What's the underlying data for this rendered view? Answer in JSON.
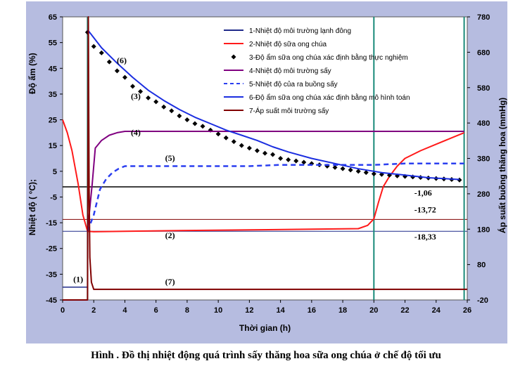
{
  "caption": "Hình . Đồ thị nhiệt động quá trình sấy thăng hoa sữa ong chúa ở chế độ tối ưu",
  "chart_data": {
    "type": "line",
    "xlabel": "Thời gian (h)",
    "ylabel_left_top": "Độ ẩm (%)",
    "ylabel_left_bottom": "Nhiệt độ ( °C);",
    "ylabel_right": "Áp suất buồng thăng hoa (mmHg)",
    "xlim": [
      0,
      26
    ],
    "ylim_left": [
      -45,
      65
    ],
    "ylim_right": [
      -20,
      780
    ],
    "x_ticks": [
      0,
      2,
      4,
      6,
      8,
      10,
      12,
      14,
      16,
      18,
      20,
      22,
      24,
      26
    ],
    "y_left_ticks": [
      65,
      55,
      45,
      35,
      25,
      15,
      5,
      -5,
      -15,
      -25,
      -35,
      -45
    ],
    "y_right_ticks": [
      780,
      680,
      580,
      480,
      380,
      280,
      180,
      80,
      -20
    ],
    "colors": {
      "background": "#ffffff",
      "plot_bg": "#ffffff",
      "panel": "#b6bce0",
      "series1": "#1f2a8a",
      "series2": "#ff1a1a",
      "series3": "#000000",
      "series4": "#800080",
      "series5": "#2b3ff0",
      "series6": "#1b2ee0",
      "series7": "#800000",
      "vline": "#1a8a7a"
    },
    "legend": [
      {
        "label": "1-Nhiệt độ môi trường lạnh đông",
        "style": "line",
        "color": "#1f2a8a"
      },
      {
        "label": "2-Nhiệt độ sữa ong chúa",
        "style": "line",
        "color": "#ff1a1a"
      },
      {
        "label": "3-Độ ẩm sữa ong chúa xác định bằng thực nghiệm",
        "style": "marker",
        "color": "#000000"
      },
      {
        "label": "4-Nhiệt độ môi trường sấy",
        "style": "line",
        "color": "#800080"
      },
      {
        "label": "5-Nhiệt độ của ra buồng sấy",
        "style": "dash",
        "color": "#2b3ff0"
      },
      {
        "label": "6-Độ ẩm sữa ong chúa xác định bằng mô hình toán",
        "style": "line",
        "color": "#1b2ee0"
      },
      {
        "label": "7-Áp suất môi trường sấy",
        "style": "line",
        "color": "#800000"
      }
    ],
    "vlines_x": [
      1.6,
      20,
      25.8
    ],
    "hlines_y": [
      -1.06,
      -13.72,
      -18.33
    ],
    "hline_labels": [
      "-1,06",
      "-13,72",
      "-18,33"
    ],
    "curve_labels": [
      {
        "text": "(1)",
        "x": 1.0,
        "y": -38
      },
      {
        "text": "(2)",
        "x": 6.9,
        "y": -21
      },
      {
        "text": "(3)",
        "x": 4.7,
        "y": 33
      },
      {
        "text": "(4)",
        "x": 4.7,
        "y": 19
      },
      {
        "text": "(5)",
        "x": 6.9,
        "y": 9
      },
      {
        "text": "(6)",
        "x": 3.8,
        "y": 47
      },
      {
        "text": "(7)",
        "x": 6.9,
        "y": -39
      }
    ],
    "series": [
      {
        "name": "1-Nhiệt độ môi trường lạnh đông",
        "axis": "left",
        "x": [
          0,
          1.6,
          1.6
        ],
        "y": [
          -40,
          -40,
          -18.33
        ]
      },
      {
        "name": "2-Nhiệt độ sữa ong chúa",
        "axis": "left",
        "x": [
          0,
          0.3,
          0.6,
          1.0,
          1.3,
          1.6,
          2.0,
          4,
          8,
          12,
          16,
          19,
          19.6,
          20,
          20.3,
          20.6,
          21,
          21.5,
          22,
          23,
          24,
          25,
          25.8
        ],
        "y": [
          25,
          20,
          13,
          0,
          -12,
          -18.3,
          -18.5,
          -18.3,
          -18.0,
          -17.8,
          -17.5,
          -17.3,
          -16,
          -13.5,
          -7,
          -1,
          3,
          7,
          10,
          13,
          15.5,
          18,
          20
        ]
      },
      {
        "name": "3-Độ ẩm sữa ong chúa xác định bằng thực nghiệm",
        "axis": "left",
        "x": [
          1.6,
          2,
          2.5,
          3,
          3.5,
          4,
          4.5,
          5,
          5.5,
          6,
          6.5,
          7,
          7.5,
          8,
          8.5,
          9,
          9.5,
          10,
          10.5,
          11,
          11.5,
          12,
          12.5,
          13,
          13.5,
          14,
          14.5,
          15,
          15.5,
          16,
          16.5,
          17,
          17.5,
          18,
          18.5,
          19,
          19.5,
          20,
          20.5,
          21,
          21.5,
          22,
          22.5,
          23,
          23.5,
          24,
          24.5,
          25,
          25.5
        ],
        "y": [
          59,
          53.5,
          51,
          47.5,
          44,
          41.5,
          38,
          36,
          33.5,
          32,
          30,
          28.5,
          26.5,
          25,
          23.5,
          22.5,
          21,
          19.5,
          18,
          16.5,
          15,
          14,
          13,
          12,
          11.5,
          10,
          9.5,
          9,
          8.5,
          8,
          7.5,
          7,
          6.5,
          6,
          5.5,
          5,
          4.5,
          4,
          3.8,
          3.5,
          3.2,
          3,
          2.8,
          2.6,
          2.4,
          2.2,
          2,
          1.8,
          1.6
        ]
      },
      {
        "name": "4-Nhiệt độ môi trường sấy",
        "axis": "left",
        "x": [
          1.6,
          1.9,
          2.1,
          2.5,
          3,
          3.5,
          4,
          8,
          12,
          16,
          20,
          25.8
        ],
        "y": [
          -18.3,
          0,
          14,
          17,
          19,
          20,
          20.5,
          20.5,
          20.5,
          20.5,
          20.5,
          20.5
        ]
      },
      {
        "name": "5-Nhiệt độ của ra buồng sấy",
        "axis": "left",
        "x": [
          1.6,
          2.0,
          2.4,
          2.8,
          3.2,
          3.6,
          4,
          8,
          12,
          14,
          16,
          20,
          22,
          25.8
        ],
        "y": [
          -18.3,
          -12,
          -2,
          2,
          4.5,
          6,
          7,
          7,
          7,
          7.5,
          7.5,
          7.5,
          8,
          8
        ]
      },
      {
        "name": "6-Độ ẩm sữa ong chúa xác định bằng mô hình toán",
        "axis": "left",
        "x": [
          1.6,
          2.5,
          3.5,
          4.5,
          5.5,
          6.5,
          7.5,
          8.5,
          9.5,
          10.5,
          11.5,
          12.5,
          13.5,
          14.5,
          16,
          17.5,
          19,
          20.5,
          22,
          23.5,
          25.5
        ],
        "y": [
          60,
          53,
          47,
          41.5,
          36.5,
          32.5,
          29,
          26,
          23.5,
          21,
          19,
          17,
          14.5,
          12.5,
          10,
          8,
          6,
          4.5,
          3.5,
          2.5,
          1.8
        ]
      },
      {
        "name": "7-Áp suất môi trường sấy",
        "axis": "right",
        "x": [
          0,
          1.6,
          1.65,
          1.7,
          1.75,
          1.85,
          2.0,
          26
        ],
        "y": [
          -20,
          -20,
          800,
          300,
          100,
          30,
          10,
          10
        ]
      }
    ]
  }
}
